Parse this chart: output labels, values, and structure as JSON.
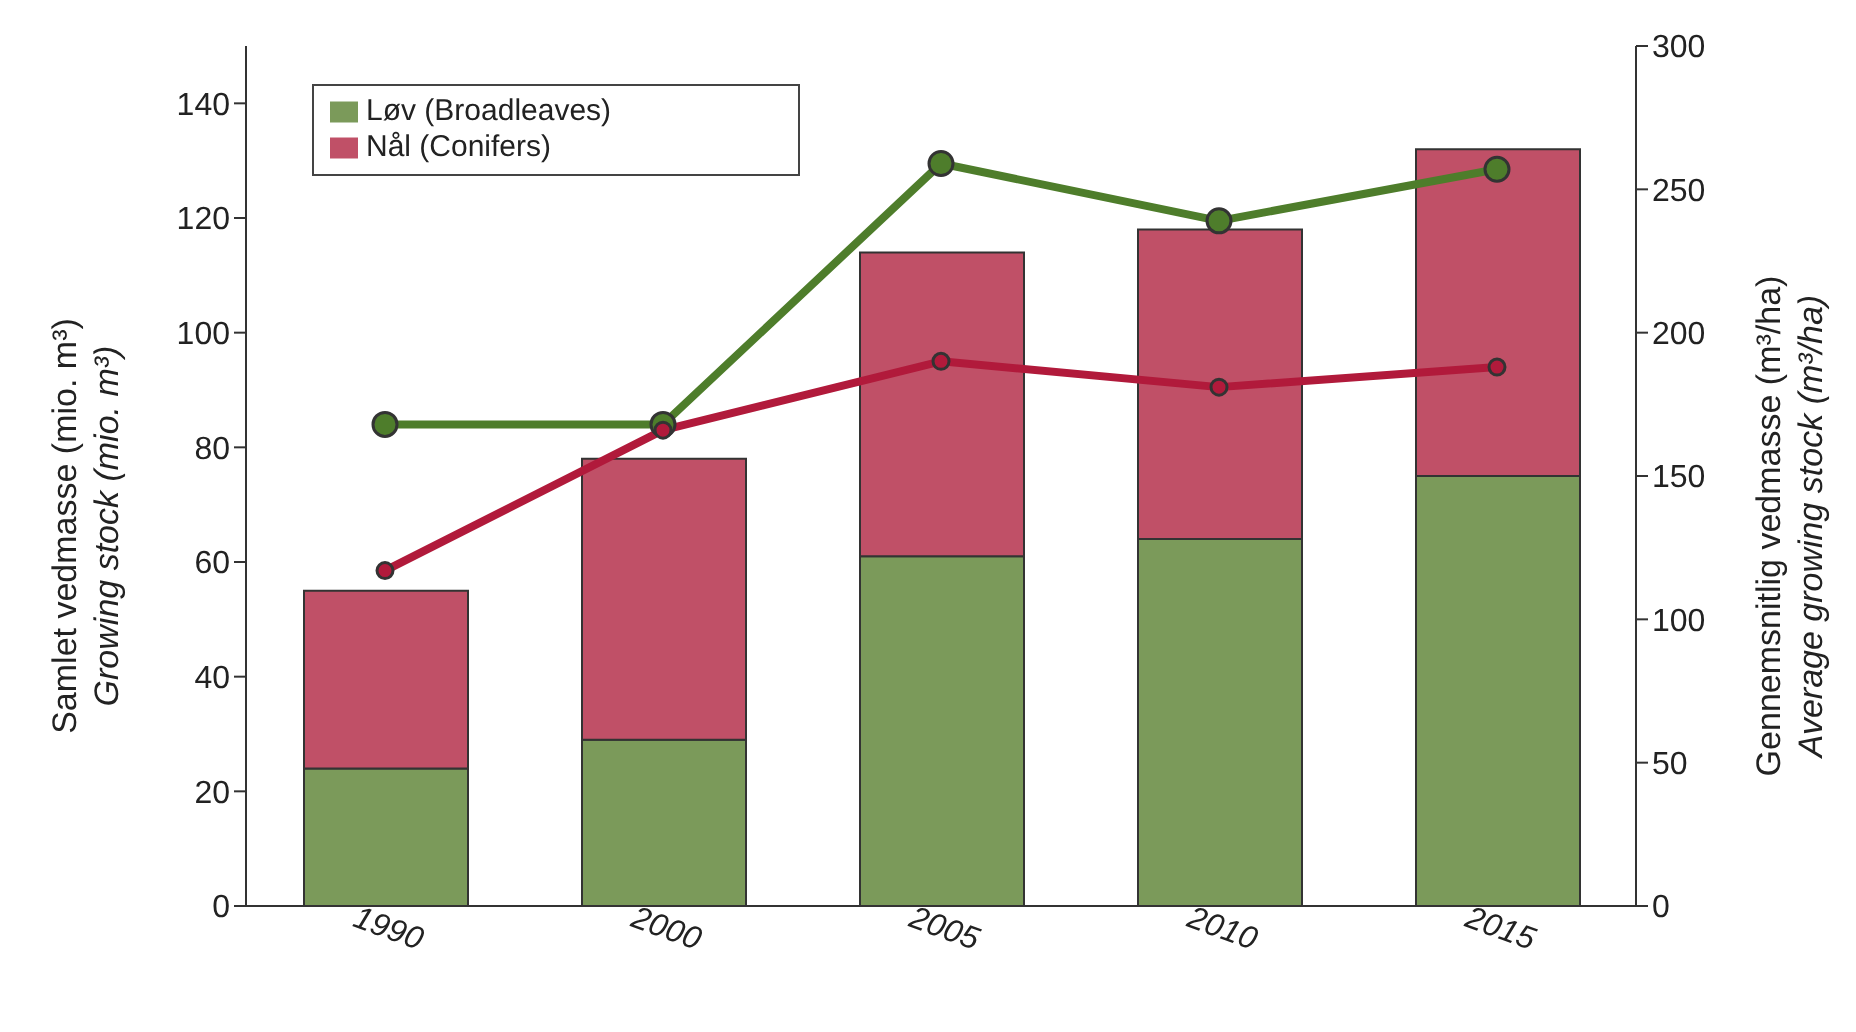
{
  "chart_data": {
    "type": "bar",
    "stacked": true,
    "categories": [
      "1990",
      "2000",
      "2005",
      "2010",
      "2015"
    ],
    "ylabel": "Samlet vedmasse (mio. m³)\nGrowing stock (mio. m³)",
    "y2label": "Gennemsnitlig vedmasse (m³/ha)\nAverage growing stock (m³/ha)",
    "series": [
      {
        "name": "Løv (Broadleaves)",
        "color": "#7b9a5a",
        "values": [
          24,
          29,
          61,
          64,
          75
        ]
      },
      {
        "name": "Nål (Conifers)",
        "color": "#c05067",
        "values": [
          31,
          49,
          53,
          54,
          57
        ]
      },
      {
        "type": "line",
        "axis": "y2",
        "color": "#4e7d2b",
        "values": [
          168,
          168,
          259,
          239,
          257
        ]
      },
      {
        "type": "line",
        "axis": "y2",
        "color": "#b11a3b",
        "values": [
          117,
          166,
          190,
          181,
          188
        ]
      }
    ],
    "ylim": [
      0,
      150
    ],
    "yticks": [
      0,
      20,
      40,
      60,
      80,
      100,
      120,
      140
    ],
    "y2lim": [
      0,
      300
    ],
    "y2ticks": [
      0,
      50,
      100,
      150,
      200,
      250,
      300
    ],
    "grid": false,
    "legend": "top left",
    "marker": "circle",
    "line_style": "solid"
  }
}
